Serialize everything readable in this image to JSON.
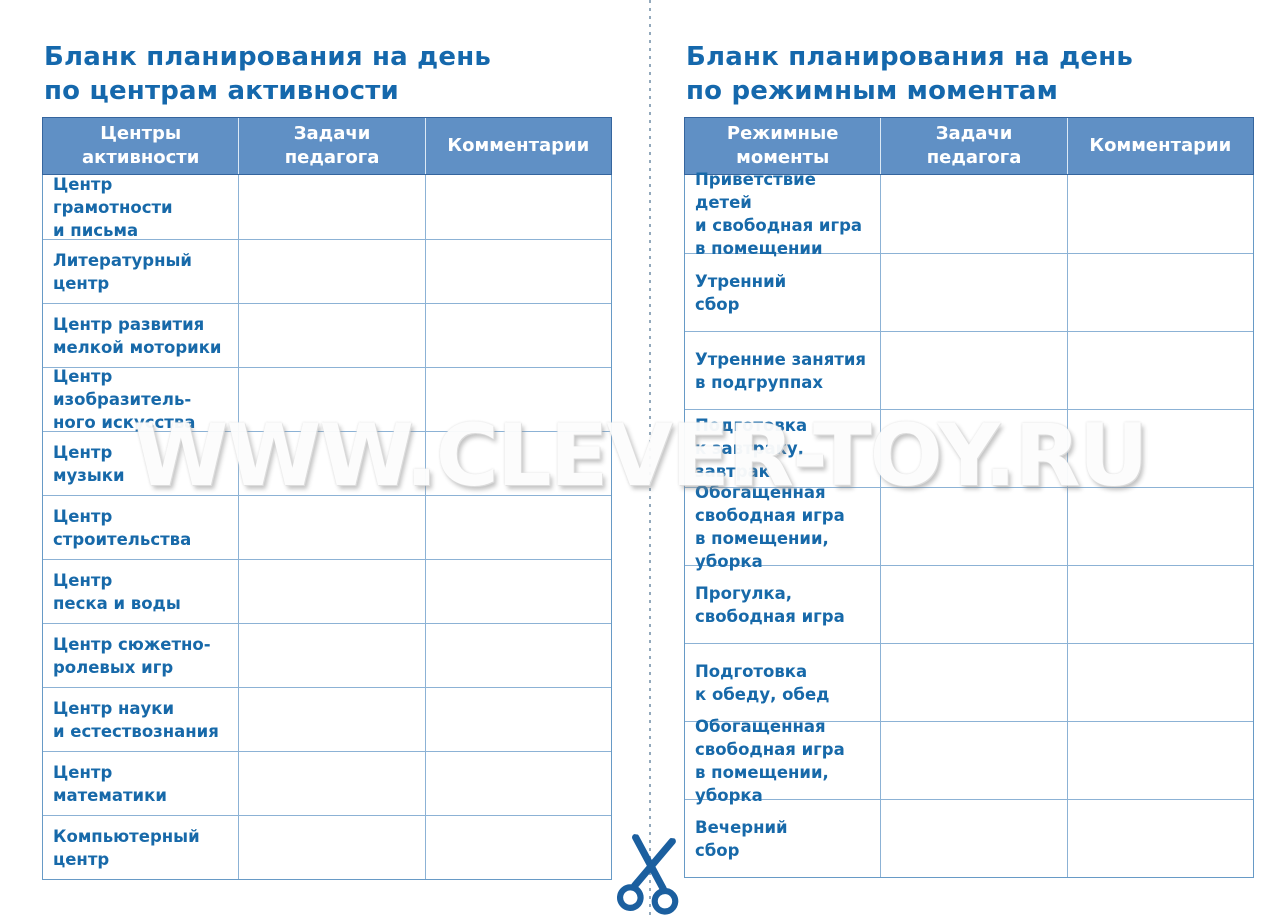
{
  "watermark": "WWW.CLEVER-TOY.RU",
  "colors": {
    "header_fill": "#6090c5",
    "header_text": "#ffffff",
    "label_text": "#1769a9",
    "title_text": "#1568ac",
    "grid_line": "#8cb2d5",
    "cut_line": "#93a9bc",
    "scissors": "#1b5f9f"
  },
  "sheets": {
    "left": {
      "title": "Бланк планирования на день\nпо центрам активности",
      "columns": [
        "Центры\nактивности",
        "Задачи\nпедагога",
        "Комментарии"
      ],
      "rows": [
        {
          "label": "Центр грамотности\nи письма",
          "tasks": "",
          "comments": ""
        },
        {
          "label": "Литературный\nцентр",
          "tasks": "",
          "comments": ""
        },
        {
          "label": "Центр развития\nмелкой моторики",
          "tasks": "",
          "comments": ""
        },
        {
          "label": "Центр изобразитель-\nного искусства",
          "tasks": "",
          "comments": ""
        },
        {
          "label": "Центр\nмузыки",
          "tasks": "",
          "comments": ""
        },
        {
          "label": "Центр\nстроительства",
          "tasks": "",
          "comments": ""
        },
        {
          "label": "Центр\nпеска и воды",
          "tasks": "",
          "comments": ""
        },
        {
          "label": "Центр сюжетно-\nролевых игр",
          "tasks": "",
          "comments": ""
        },
        {
          "label": "Центр науки\nи естествознания",
          "tasks": "",
          "comments": ""
        },
        {
          "label": "Центр\nматематики",
          "tasks": "",
          "comments": ""
        },
        {
          "label": "Компьютерный\nцентр",
          "tasks": "",
          "comments": ""
        }
      ]
    },
    "right": {
      "title": "Бланк планирования на день\nпо режимным моментам",
      "columns": [
        "Режимные\nмоменты",
        "Задачи\nпедагога",
        "Комментарии"
      ],
      "rows": [
        {
          "label": "Приветствие детей\nи свободная игра\nв помещении",
          "tasks": "",
          "comments": ""
        },
        {
          "label": "Утренний\nсбор",
          "tasks": "",
          "comments": ""
        },
        {
          "label": "Утренние занятия\nв подгруппах",
          "tasks": "",
          "comments": ""
        },
        {
          "label": "Подготовка\nк завтраку, завтрак",
          "tasks": "",
          "comments": ""
        },
        {
          "label": "Обогащенная\nсвободная игра\nв помещении, уборка",
          "tasks": "",
          "comments": ""
        },
        {
          "label": "Прогулка,\nсвободная игра",
          "tasks": "",
          "comments": ""
        },
        {
          "label": "Подготовка\nк обеду, обед",
          "tasks": "",
          "comments": ""
        },
        {
          "label": "Обогащенная\nсвободная игра\nв помещении, уборка",
          "tasks": "",
          "comments": ""
        },
        {
          "label": "Вечерний\nсбор",
          "tasks": "",
          "comments": ""
        }
      ]
    }
  }
}
